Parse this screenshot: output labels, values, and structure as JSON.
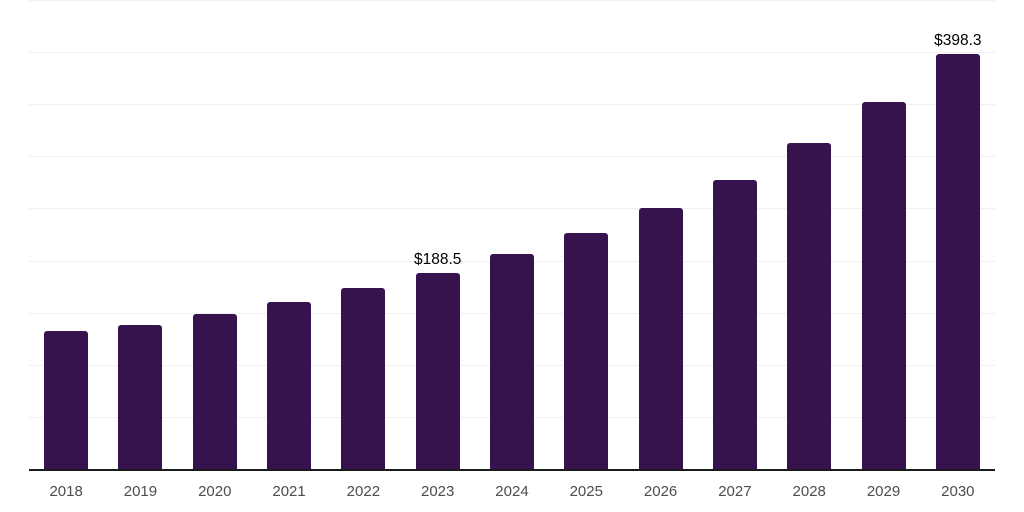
{
  "colors": {
    "bar": "#36124E",
    "gridline": "#f0f0f0",
    "axis": "#1a1a1a",
    "tick_label": "#4d4d4d",
    "data_label": "#000000",
    "background": "#ffffff"
  },
  "chart_data": {
    "type": "bar",
    "title": "",
    "xlabel": "",
    "ylabel": "",
    "categories": [
      "2018",
      "2019",
      "2020",
      "2021",
      "2022",
      "2023",
      "2024",
      "2025",
      "2026",
      "2027",
      "2028",
      "2029",
      "2030"
    ],
    "values": [
      132.4,
      138.2,
      148.8,
      160.3,
      173.7,
      188.5,
      206.3,
      226.5,
      250.0,
      277.4,
      312.9,
      352.2,
      398.3
    ],
    "value_prefix": "$",
    "annotations": [
      {
        "category": "2023",
        "label": "$188.5"
      },
      {
        "category": "2030",
        "label": "$398.3"
      }
    ],
    "ylim": [
      0,
      450
    ],
    "gridline_step": 50,
    "grid": true,
    "y_axis_labels_shown": false,
    "legend": "none"
  }
}
